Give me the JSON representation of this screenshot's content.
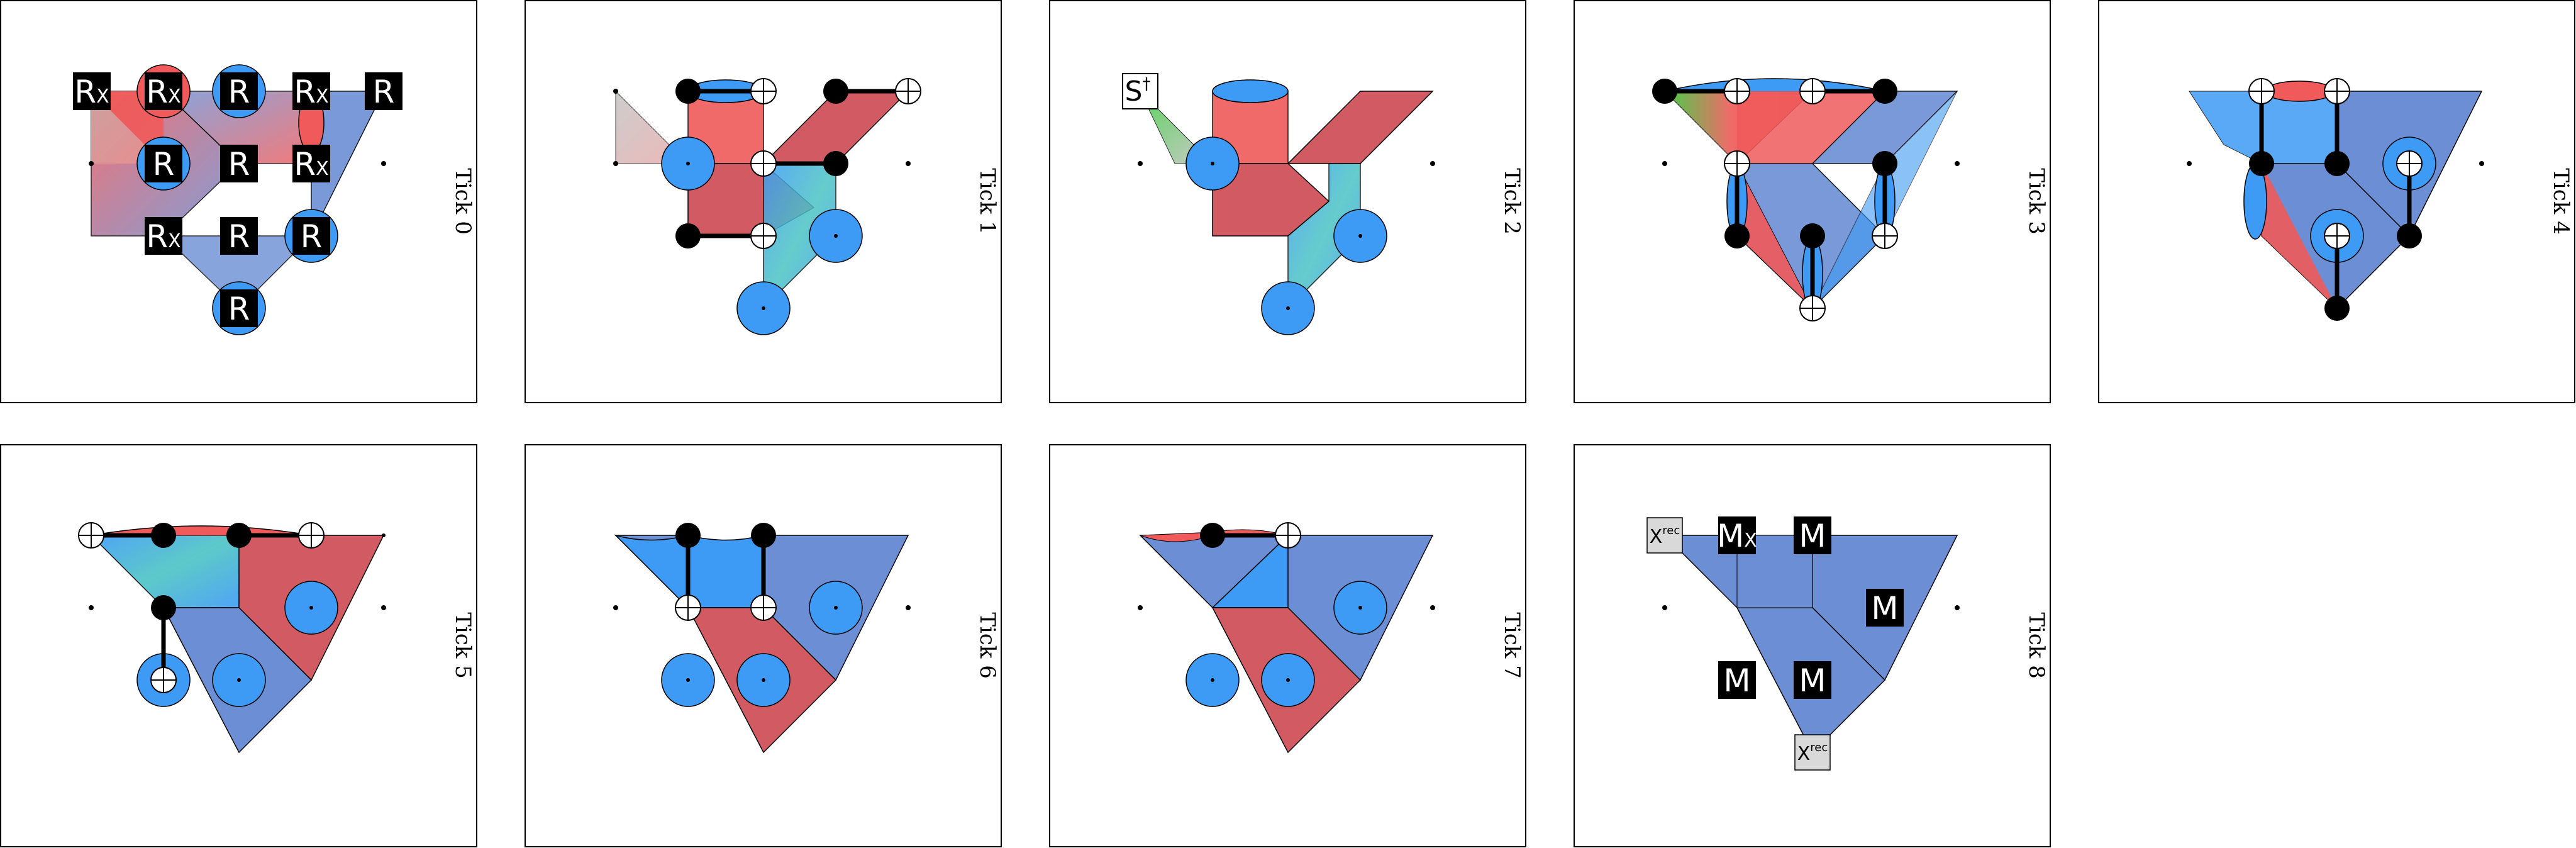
{
  "figure": {
    "panels": [
      {
        "label": "Tick 0",
        "gates": [
          {
            "text": "R",
            "sub": "X"
          },
          {
            "text": "R",
            "sub": "X"
          },
          {
            "text": "R",
            "sub": ""
          },
          {
            "text": "R",
            "sub": "X"
          },
          {
            "text": "R",
            "sub": ""
          },
          {
            "text": "R",
            "sub": ""
          },
          {
            "text": "R",
            "sub": ""
          },
          {
            "text": "R",
            "sub": "X"
          },
          {
            "text": "R",
            "sub": "X"
          },
          {
            "text": "R",
            "sub": ""
          },
          {
            "text": "R",
            "sub": ""
          },
          {
            "text": "R",
            "sub": ""
          }
        ]
      },
      {
        "label": "Tick 1"
      },
      {
        "label": "Tick 2",
        "gates": [
          {
            "text": "S",
            "sup": "†"
          }
        ]
      },
      {
        "label": "Tick 3"
      },
      {
        "label": "Tick 4"
      },
      {
        "label": "Tick 5"
      },
      {
        "label": "Tick 6"
      },
      {
        "label": "Tick 7"
      },
      {
        "label": "Tick 8",
        "gates": [
          {
            "text": "X",
            "sup": "rec"
          },
          {
            "text": "M",
            "sub": "X"
          },
          {
            "text": "M",
            "sub": ""
          },
          {
            "text": "M",
            "sub": ""
          },
          {
            "text": "M",
            "sub": ""
          },
          {
            "text": "M",
            "sub": ""
          },
          {
            "text": "X",
            "sup": "rec"
          }
        ]
      }
    ]
  },
  "colors": {
    "x_basis": "#3d9bf5",
    "z_basis": "#f05a5a",
    "y_basis": "#35c935",
    "mixed_blue": "#6b8ed4",
    "mixed_red": "#d25a63",
    "frame": "#000000",
    "gate_fill": "#000000",
    "gate_text": "#ffffff",
    "rec_gate_fill": "#d9d9d9"
  }
}
